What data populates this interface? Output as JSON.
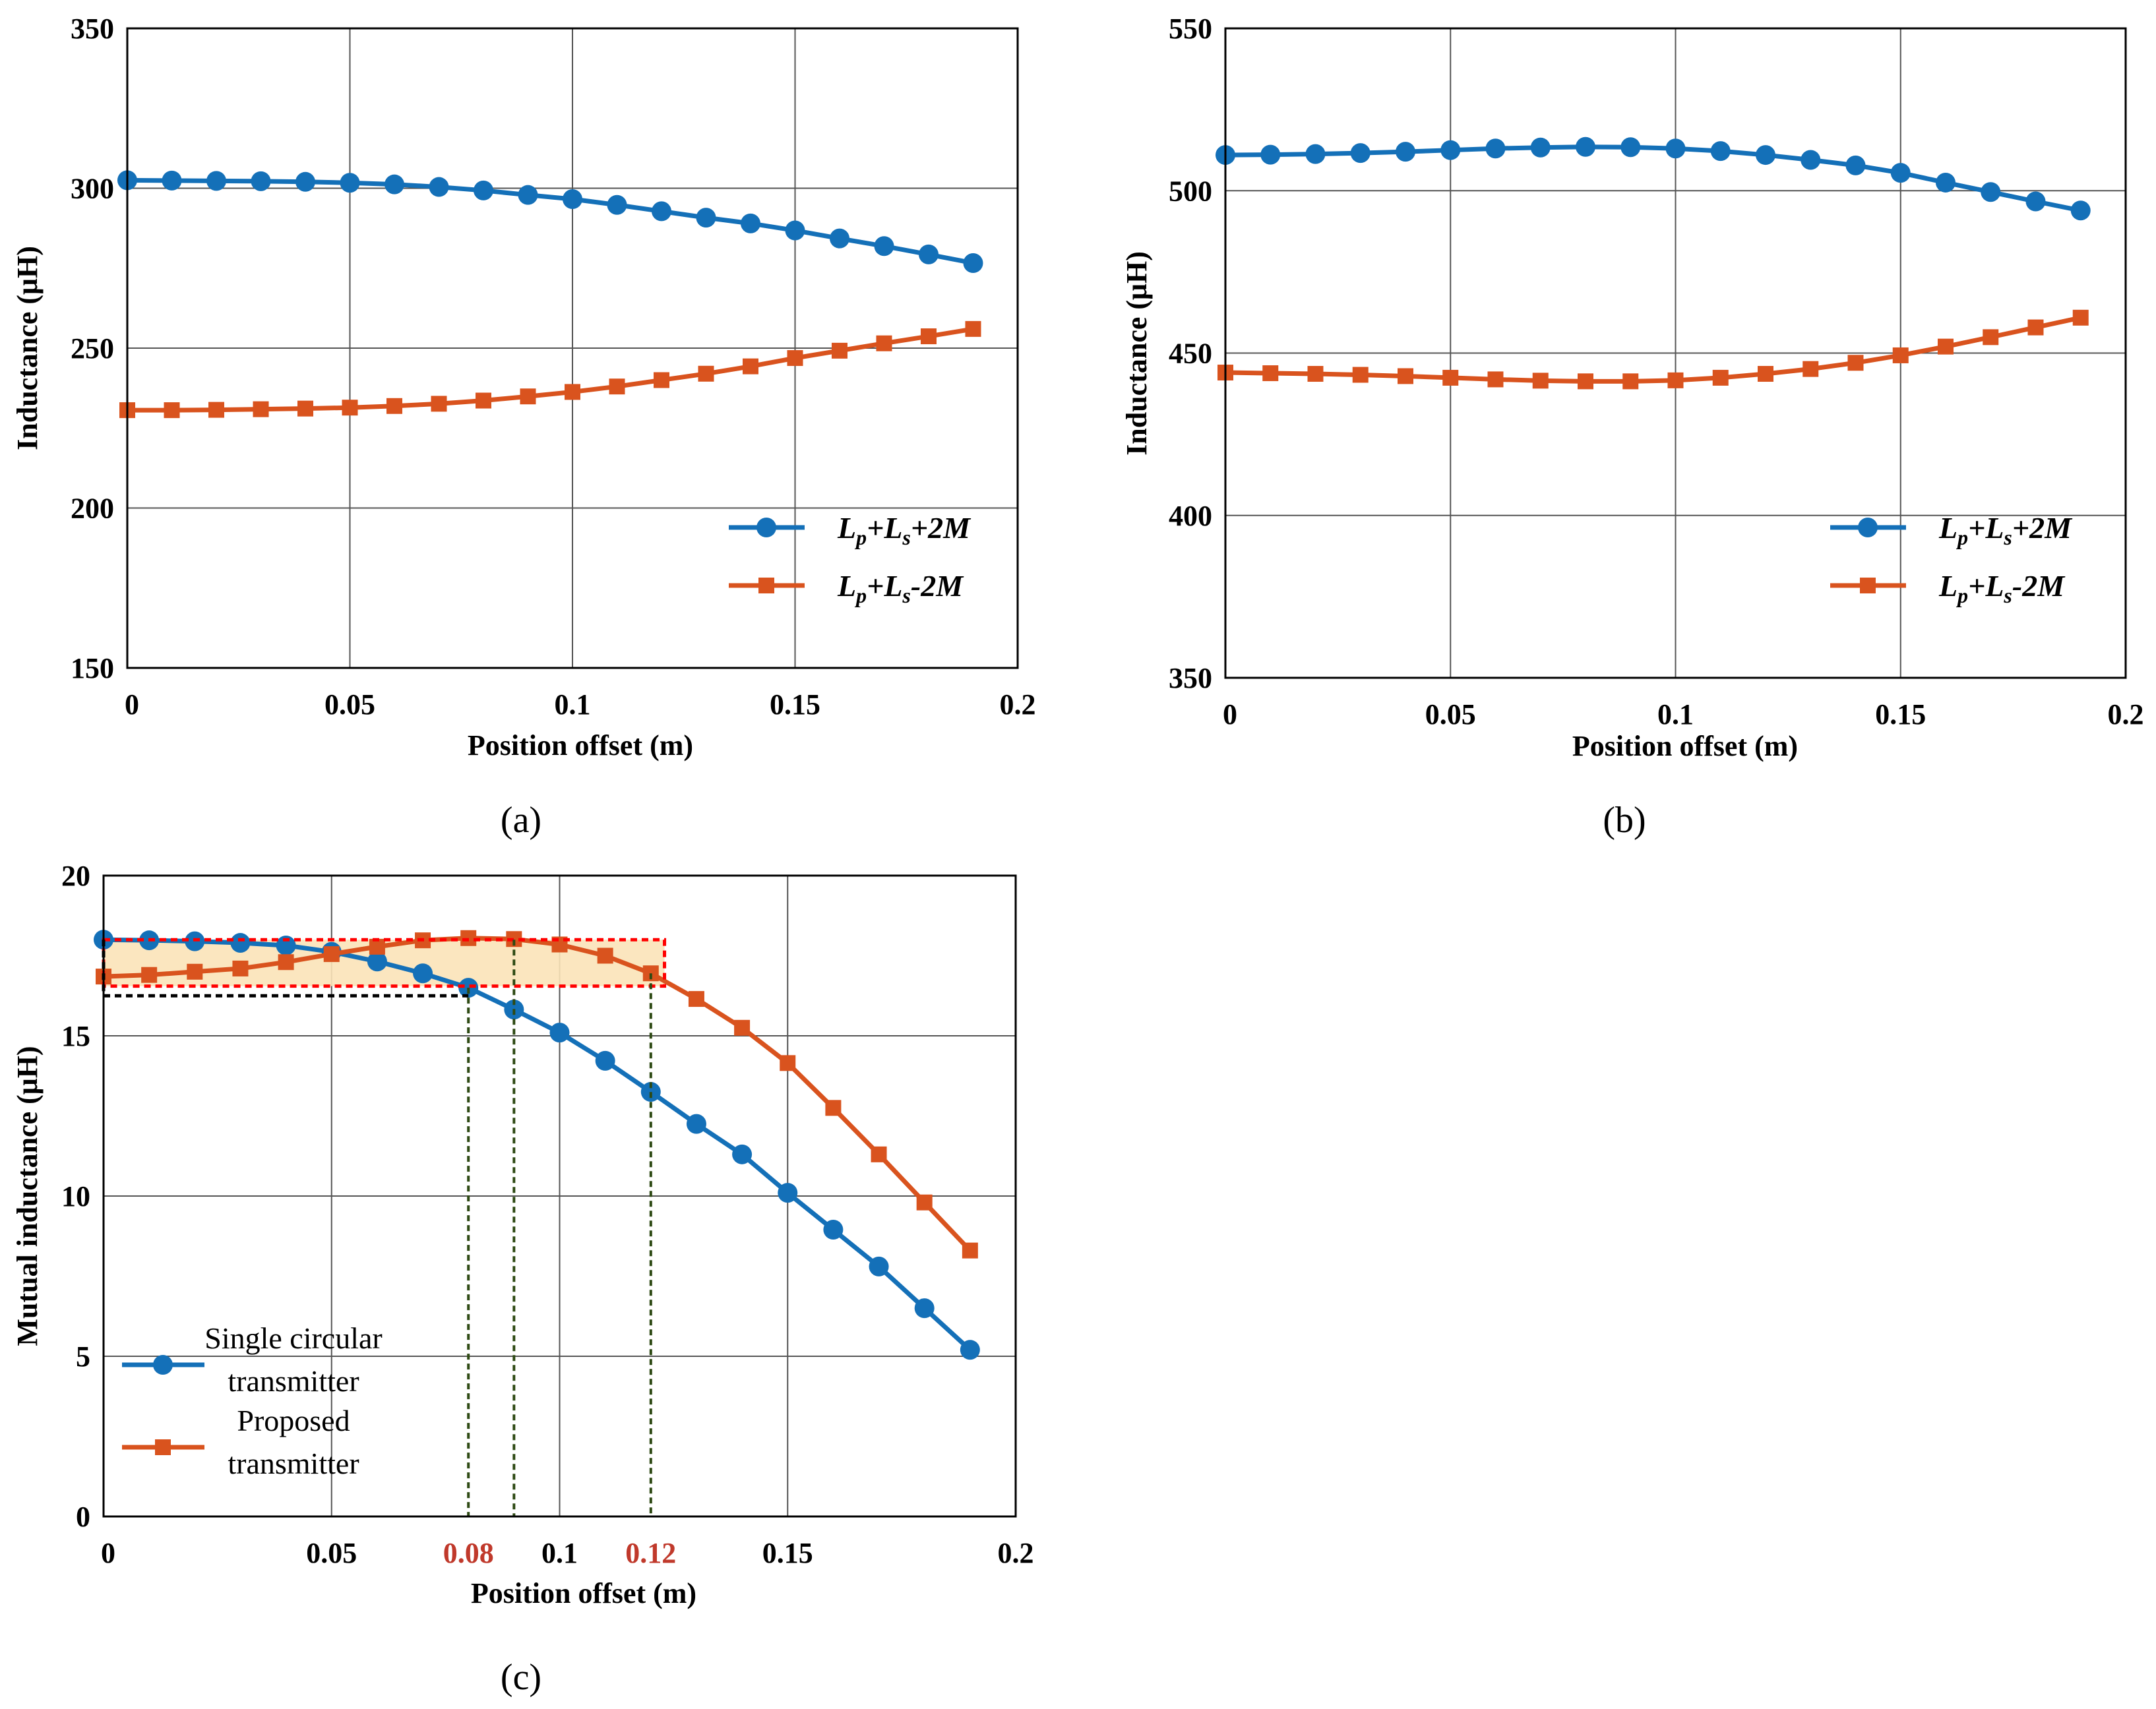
{
  "colors": {
    "blue": "#1470B8",
    "orange": "#D9531E",
    "highlight_fill": "#FBE3B8",
    "red_dashed": "#FF0000",
    "black_dashed": "#000000",
    "green_dashed": "#2E4A14",
    "red_tick": "#C0392B"
  },
  "chart_data": [
    {
      "id": "a",
      "type": "line",
      "panel_label": "(a)",
      "xlabel": "Position offset (m)",
      "ylabel": "Inductance (μH)",
      "xlim": [
        0,
        0.2
      ],
      "ylim": [
        150,
        350
      ],
      "xticks": [
        0,
        0.05,
        0.1,
        0.15,
        0.2
      ],
      "xtick_labels": [
        "0",
        "0.05",
        "0.1",
        "0.15",
        "0.2"
      ],
      "yticks": [
        150,
        200,
        250,
        300,
        350
      ],
      "ytick_labels": [
        "150",
        "200",
        "250",
        "300",
        "350"
      ],
      "legend_position": "bottom-right",
      "x": [
        0,
        0.01,
        0.02,
        0.03,
        0.04,
        0.05,
        0.06,
        0.07,
        0.08,
        0.09,
        0.1,
        0.11,
        0.12,
        0.13,
        0.14,
        0.15,
        0.16,
        0.17,
        0.18,
        0.19
      ],
      "series": [
        {
          "name": "Lp+Ls+2M",
          "legend": [
            "L",
            "p",
            "+L",
            "s",
            "+2M"
          ],
          "color": "#1470B8",
          "marker": "circle",
          "values": [
            302.5,
            302.4,
            302.3,
            302.2,
            302.0,
            301.7,
            301.2,
            300.4,
            299.3,
            297.9,
            296.6,
            294.8,
            292.8,
            290.8,
            289.0,
            286.8,
            284.3,
            281.9,
            279.3,
            276.6
          ]
        },
        {
          "name": "Lp+Ls-2M",
          "legend": [
            "L",
            "p",
            "+L",
            "s",
            "-2M"
          ],
          "color": "#D9531E",
          "marker": "square",
          "values": [
            230.6,
            230.6,
            230.7,
            230.9,
            231.1,
            231.4,
            231.9,
            232.6,
            233.6,
            234.9,
            236.3,
            238.0,
            240.0,
            242.0,
            244.3,
            246.9,
            249.2,
            251.5,
            253.7,
            256.0
          ]
        }
      ]
    },
    {
      "id": "b",
      "type": "line",
      "panel_label": "(b)",
      "xlabel": "Position offset (m)",
      "ylabel": "Inductance (μH)",
      "xlim": [
        0,
        0.2
      ],
      "ylim": [
        350,
        550
      ],
      "xticks": [
        0,
        0.05,
        0.1,
        0.15,
        0.2
      ],
      "xtick_labels": [
        "0",
        "0.05",
        "0.1",
        "0.15",
        "0.2"
      ],
      "yticks": [
        350,
        400,
        450,
        500,
        550
      ],
      "ytick_labels": [
        "350",
        "400",
        "450",
        "500",
        "550"
      ],
      "legend_position": "bottom-right",
      "x": [
        0,
        0.01,
        0.02,
        0.03,
        0.04,
        0.05,
        0.06,
        0.07,
        0.08,
        0.09,
        0.1,
        0.11,
        0.12,
        0.13,
        0.14,
        0.15,
        0.16,
        0.17,
        0.18,
        0.19
      ],
      "series": [
        {
          "name": "Lp+Ls+2M",
          "legend": [
            "L",
            "p",
            "+L",
            "s",
            "+2M"
          ],
          "color": "#1470B8",
          "marker": "circle",
          "values": [
            511.0,
            511.1,
            511.3,
            511.6,
            512.0,
            512.5,
            513.0,
            513.3,
            513.5,
            513.4,
            513.0,
            512.2,
            511.0,
            509.5,
            507.8,
            505.5,
            502.5,
            499.6,
            496.7,
            493.9
          ]
        },
        {
          "name": "Lp+Ls-2M",
          "legend": [
            "L",
            "p",
            "+L",
            "s",
            "-2M"
          ],
          "color": "#D9531E",
          "marker": "square",
          "values": [
            444.0,
            443.8,
            443.6,
            443.3,
            442.9,
            442.4,
            441.9,
            441.5,
            441.3,
            441.3,
            441.6,
            442.4,
            443.6,
            445.1,
            447.0,
            449.3,
            452.0,
            454.9,
            457.9,
            460.9
          ]
        }
      ]
    },
    {
      "id": "c",
      "type": "line",
      "panel_label": "(c)",
      "xlabel": "Position offset (m)",
      "ylabel": "Mutual inductance (μH)",
      "xlim": [
        0,
        0.2
      ],
      "ylim": [
        0,
        20
      ],
      "xticks": [
        0,
        0.05,
        0.08,
        0.1,
        0.12,
        0.15,
        0.2
      ],
      "xtick_labels": [
        "0",
        "0.05",
        "0.08",
        "0.1",
        "0.12",
        "0.15",
        "0.2"
      ],
      "highlighted_xticks": [
        0.08,
        0.12
      ],
      "yticks": [
        0,
        5,
        10,
        15,
        20
      ],
      "ytick_labels": [
        "0",
        "5",
        "10",
        "15",
        "20"
      ],
      "legend_position": "bottom-left",
      "x": [
        0,
        0.01,
        0.02,
        0.03,
        0.04,
        0.05,
        0.06,
        0.07,
        0.08,
        0.09,
        0.1,
        0.11,
        0.12,
        0.13,
        0.14,
        0.15,
        0.16,
        0.17,
        0.18,
        0.19
      ],
      "series": [
        {
          "name": "Single circular transmitter",
          "legend_lines": [
            "Single circular",
            "transmitter"
          ],
          "color": "#1470B8",
          "marker": "circle",
          "values": [
            18.0,
            17.98,
            17.95,
            17.9,
            17.82,
            17.62,
            17.32,
            16.95,
            16.5,
            15.82,
            15.1,
            14.22,
            13.25,
            12.25,
            11.3,
            10.1,
            8.95,
            7.8,
            6.5,
            5.2
          ]
        },
        {
          "name": "Proposed transmitter",
          "legend_lines": [
            "Proposed",
            "transmitter"
          ],
          "color": "#D9531E",
          "marker": "square",
          "values": [
            16.85,
            16.9,
            17.0,
            17.1,
            17.3,
            17.55,
            17.78,
            17.98,
            18.05,
            18.02,
            17.85,
            17.5,
            16.95,
            16.15,
            15.25,
            14.15,
            12.75,
            11.3,
            9.8,
            8.3
          ]
        }
      ],
      "annotations": {
        "shaded_band": {
          "x0": 0,
          "x1": 0.123,
          "y0": 16.55,
          "y1": 18.0
        },
        "red_dashed_box": {
          "x0": 0,
          "x1": 0.123,
          "y0": 16.55,
          "y1": 18.0
        },
        "black_dashed_box": {
          "x0": 0,
          "x1": 0.08,
          "y0": 16.25,
          "y1": 18.0
        },
        "vertical_dashed_lines": [
          {
            "x": 0.08,
            "y_top": 16.5
          },
          {
            "x": 0.09,
            "y_top": 18.0
          },
          {
            "x": 0.12,
            "y_top": 16.95
          }
        ]
      }
    }
  ]
}
